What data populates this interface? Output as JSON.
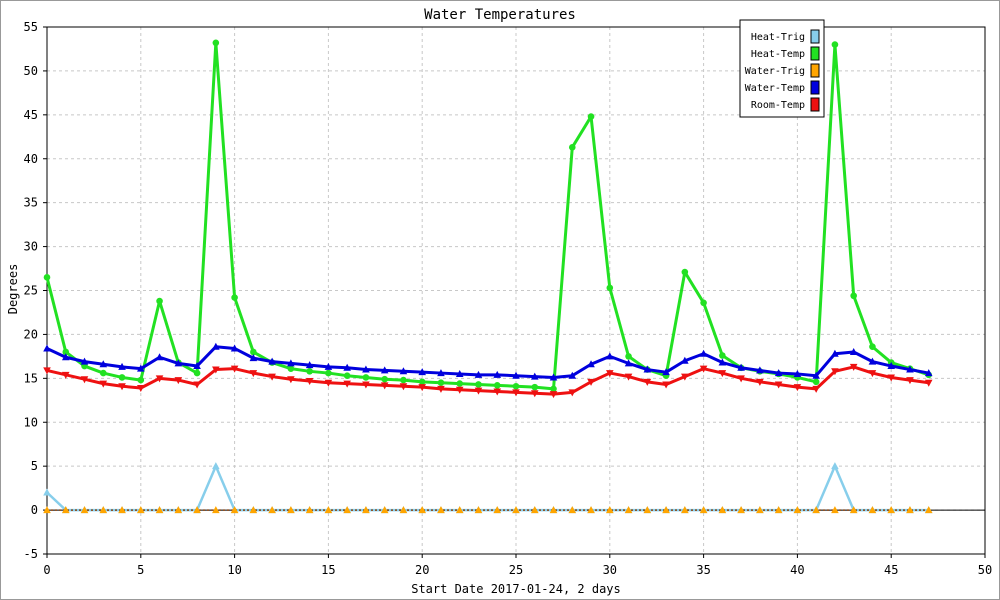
{
  "chart_data": {
    "type": "line",
    "title": "Water Temperatures",
    "xlabel": "Start Date 2017-01-24, 2 days",
    "ylabel": "Degrees",
    "xlim": [
      0,
      50
    ],
    "ylim": [
      -5,
      55
    ],
    "xticks": [
      0,
      5,
      10,
      15,
      20,
      25,
      30,
      35,
      40,
      45,
      50
    ],
    "yticks": [
      -5,
      0,
      5,
      10,
      15,
      20,
      25,
      30,
      35,
      40,
      45,
      50,
      55
    ],
    "grid": true,
    "legend_position": "top-right",
    "x": [
      0,
      1,
      2,
      3,
      4,
      5,
      6,
      7,
      8,
      9,
      10,
      11,
      12,
      13,
      14,
      15,
      16,
      17,
      18,
      19,
      20,
      21,
      22,
      23,
      24,
      25,
      26,
      27,
      28,
      29,
      30,
      31,
      32,
      33,
      34,
      35,
      36,
      37,
      38,
      39,
      40,
      41,
      42,
      43,
      44,
      45,
      46,
      47
    ],
    "series": [
      {
        "name": "Heat-Trig",
        "color": "#87ceeb",
        "marker": "triangle-up",
        "values": [
          2,
          0,
          0,
          0,
          0,
          0,
          0,
          0,
          0,
          5,
          0,
          0,
          0,
          0,
          0,
          0,
          0,
          0,
          0,
          0,
          0,
          0,
          0,
          0,
          0,
          0,
          0,
          0,
          0,
          0,
          0,
          0,
          0,
          0,
          0,
          0,
          0,
          0,
          0,
          0,
          0,
          0,
          5,
          0,
          0,
          0,
          0,
          0
        ]
      },
      {
        "name": "Heat-Temp",
        "color": "#22e122",
        "marker": "circle",
        "values": [
          26.5,
          18,
          16.4,
          15.6,
          15.1,
          14.8,
          23.8,
          16.8,
          15.6,
          53.2,
          24.2,
          18,
          16.8,
          16.1,
          15.8,
          15.6,
          15.3,
          15.1,
          14.9,
          14.8,
          14.6,
          14.5,
          14.4,
          14.3,
          14.2,
          14.1,
          14,
          13.8,
          41.3,
          44.8,
          25.3,
          17.5,
          16,
          15.3,
          27.1,
          23.6,
          17.6,
          16.2,
          15.8,
          15.5,
          15.1,
          14.6,
          53,
          24.4,
          18.6,
          16.8,
          16.1,
          15.4
        ]
      },
      {
        "name": "Water-Trig",
        "color": "#ffa500",
        "marker": "triangle-up",
        "values": [
          0,
          0,
          0,
          0,
          0,
          0,
          0,
          0,
          0,
          0,
          0,
          0,
          0,
          0,
          0,
          0,
          0,
          0,
          0,
          0,
          0,
          0,
          0,
          0,
          0,
          0,
          0,
          0,
          0,
          0,
          0,
          0,
          0,
          0,
          0,
          0,
          0,
          0,
          0,
          0,
          0,
          0,
          0,
          0,
          0,
          0,
          0,
          0
        ]
      },
      {
        "name": "Water-Temp",
        "color": "#0000dd",
        "marker": "triangle-up",
        "values": [
          18.4,
          17.4,
          16.9,
          16.6,
          16.3,
          16.1,
          17.4,
          16.7,
          16.4,
          18.6,
          18.4,
          17.3,
          16.9,
          16.7,
          16.5,
          16.3,
          16.2,
          16.0,
          15.9,
          15.8,
          15.7,
          15.6,
          15.5,
          15.4,
          15.4,
          15.3,
          15.2,
          15.1,
          15.3,
          16.6,
          17.5,
          16.7,
          16.0,
          15.7,
          17.0,
          17.8,
          16.8,
          16.2,
          15.9,
          15.6,
          15.5,
          15.3,
          17.8,
          18.0,
          16.9,
          16.4,
          16.0,
          15.6
        ]
      },
      {
        "name": "Room-Temp",
        "color": "#ee1111",
        "marker": "triangle-down",
        "values": [
          15.9,
          15.4,
          14.9,
          14.4,
          14.1,
          13.9,
          15.0,
          14.8,
          14.3,
          16.0,
          16.1,
          15.6,
          15.2,
          14.9,
          14.7,
          14.5,
          14.4,
          14.3,
          14.2,
          14.1,
          14.0,
          13.8,
          13.7,
          13.6,
          13.5,
          13.4,
          13.3,
          13.2,
          13.4,
          14.6,
          15.6,
          15.2,
          14.6,
          14.3,
          15.2,
          16.1,
          15.6,
          15.0,
          14.6,
          14.3,
          14.0,
          13.8,
          15.8,
          16.3,
          15.6,
          15.1,
          14.8,
          14.5
        ]
      }
    ]
  }
}
